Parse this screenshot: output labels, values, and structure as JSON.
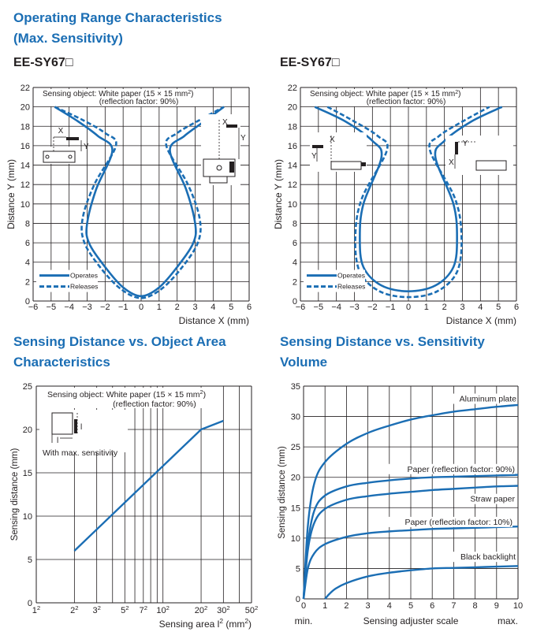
{
  "sections": {
    "operating_range": {
      "line1": "Operating Range Characteristics",
      "line2": "(Max. Sensitivity)"
    },
    "distance_area": {
      "line1": "Sensing Distance vs. Object Area",
      "line2": "Characteristics"
    },
    "distance_sensitivity": {
      "line1": "Sensing Distance vs. Sensitivity",
      "line2": "Volume"
    }
  },
  "models": {
    "left": "EE-SY67□",
    "right": "EE-SY67□"
  },
  "colors": {
    "curve": "#1b6eb4",
    "grid": "#231f20",
    "title": "#1b6eb4"
  },
  "chart_data": [
    {
      "id": "range-left",
      "type": "line",
      "xlabel": "Distance X (mm)",
      "ylabel": "Distance  Y (mm)",
      "xlim": [
        -6,
        6
      ],
      "ylim": [
        0,
        22
      ],
      "xticks": [
        "−6",
        "−5",
        "−4",
        "−3",
        "−2",
        "−1",
        "0",
        "1",
        "2",
        "3",
        "4",
        "5",
        "6"
      ],
      "yticks": [
        "0",
        "2",
        "4",
        "6",
        "8",
        "10",
        "12",
        "14",
        "16",
        "18",
        "20",
        "22"
      ],
      "annotation_line1": "Sensing object: White paper (15 × 15 mm²)",
      "annotation_line2": "(reflection factor: 90%)",
      "legend": [
        "Operates",
        "Releases"
      ],
      "legend_position": "bottom-left",
      "series": [
        {
          "name": "Operates",
          "style": "solid",
          "x": [
            -4.8,
            -3.5,
            -2.4,
            -1.6,
            -2.5,
            -3.0,
            -2.9,
            -2.0,
            -1.0,
            0,
            1.0,
            2.0,
            2.9,
            3.0,
            2.5,
            1.6,
            2.4,
            3.5,
            4.6
          ],
          "y": [
            20,
            18.5,
            17,
            15.5,
            11.5,
            8,
            6,
            3.5,
            1.4,
            0.5,
            1.4,
            3.5,
            6,
            8,
            11.5,
            15.5,
            17,
            18.5,
            20
          ]
        },
        {
          "name": "Releases",
          "style": "dashed",
          "x": [
            -4.8,
            -3.3,
            -2.0,
            -1.4,
            -2.6,
            -3.25,
            -3.15,
            -2.2,
            -1.1,
            0,
            1.1,
            2.2,
            3.15,
            3.25,
            2.6,
            1.4,
            2.0,
            3.3,
            4.6
          ],
          "y": [
            20,
            18.7,
            17.3,
            16,
            12,
            8.5,
            6,
            3.3,
            1.2,
            0.3,
            1.2,
            3.3,
            6,
            8.5,
            12,
            16,
            17.3,
            18.7,
            20
          ]
        }
      ]
    },
    {
      "id": "range-right",
      "type": "line",
      "xlabel": "Distance X (mm)",
      "ylabel": "Distance  Y (mm)",
      "xlim": [
        -6,
        6
      ],
      "ylim": [
        0,
        22
      ],
      "xticks": [
        "−6",
        "−5",
        "−4",
        "−3",
        "−2",
        "−1",
        "0",
        "1",
        "2",
        "3",
        "4",
        "5",
        "6"
      ],
      "yticks": [
        "0",
        "2",
        "4",
        "6",
        "8",
        "10",
        "12",
        "14",
        "16",
        "18",
        "20",
        "22"
      ],
      "annotation_line1": "Sensing object: White paper (15 × 15 mm²)",
      "annotation_line2": "(reflection factor: 90%)",
      "legend": [
        "Operates",
        "Releases"
      ],
      "legend_position": "bottom-left",
      "series": [
        {
          "name": "Operates",
          "style": "solid",
          "x": [
            -5.2,
            -3.5,
            -2.0,
            -1.5,
            -2.5,
            -2.7,
            -2.5,
            -1.5,
            0,
            1.5,
            2.5,
            2.7,
            2.5,
            1.5,
            2.0,
            3.5,
            5.2
          ],
          "y": [
            20,
            18.5,
            16.5,
            14.8,
            10,
            6.5,
            3.5,
            1.6,
            1.0,
            1.6,
            3.5,
            6.5,
            10,
            14.8,
            16.5,
            18.5,
            20
          ]
        },
        {
          "name": "Releases",
          "style": "dashed",
          "x": [
            -4.5,
            -3.2,
            -1.7,
            -1.2,
            -2.6,
            -2.95,
            -2.7,
            -1.6,
            0,
            1.6,
            2.7,
            2.95,
            2.6,
            1.2,
            1.7,
            3.2,
            4.5
          ],
          "y": [
            20,
            18.7,
            17,
            15.5,
            10.5,
            6.5,
            3.0,
            1.0,
            0.4,
            1.0,
            3.0,
            6.5,
            10.5,
            15.5,
            17,
            18.7,
            20
          ]
        }
      ]
    },
    {
      "id": "distance-area",
      "type": "line",
      "xscale": "log",
      "xlabel": "Sensing area  l² (mm²)",
      "ylabel": "Sensing distance (mm)",
      "xlim": [
        1,
        50
      ],
      "ylim": [
        0,
        25
      ],
      "xticks": [
        "1²",
        "2²",
        "3²",
        "5²",
        "7²",
        "10²",
        "20²",
        "30²",
        "50²"
      ],
      "yticks": [
        "0",
        "5",
        "10",
        "15",
        "20",
        "25"
      ],
      "annotation_line1": "Sensing object: White paper (15 × 15 mm²)",
      "annotation_line2": "(reflection factor: 90%)",
      "inset_label": "With max. sensitivity",
      "series": [
        {
          "x": [
            2,
            20,
            30
          ],
          "y": [
            6,
            20,
            21
          ]
        }
      ]
    },
    {
      "id": "distance-sensitivity",
      "type": "line",
      "xlabel": "Sensing adjuster scale",
      "ylabel": "Sensing distance (mm)",
      "xmin_label": "min.",
      "xmax_label": "max.",
      "xlim": [
        0,
        10
      ],
      "ylim": [
        0,
        35
      ],
      "xticks": [
        "0",
        "1",
        "2",
        "3",
        "4",
        "5",
        "6",
        "7",
        "8",
        "9",
        "10"
      ],
      "yticks": [
        "0",
        "5",
        "10",
        "15",
        "20",
        "25",
        "30",
        "35"
      ],
      "series": [
        {
          "name": "Aluminum plate",
          "x": [
            0,
            0.2,
            0.5,
            1,
            2,
            3,
            4,
            5,
            6,
            7,
            8,
            9,
            10
          ],
          "y": [
            0,
            12,
            19,
            22.5,
            25.5,
            27.3,
            28.5,
            29.5,
            30.2,
            30.8,
            31.2,
            31.6,
            31.9
          ]
        },
        {
          "name": "Paper (reflection factor: 90%)",
          "x": [
            0,
            0.2,
            0.5,
            1,
            2,
            3,
            4,
            5,
            6,
            7,
            8,
            9,
            10
          ],
          "y": [
            0,
            9,
            14.5,
            17,
            18.5,
            19.1,
            19.5,
            19.8,
            20,
            20.1,
            20.2,
            20.3,
            20.4
          ]
        },
        {
          "name": "Straw paper",
          "x": [
            0,
            0.2,
            0.5,
            1,
            2,
            3,
            4,
            5,
            6,
            7,
            8,
            9,
            10
          ],
          "y": [
            0,
            8,
            12.5,
            14.8,
            16.3,
            16.9,
            17.3,
            17.6,
            17.9,
            18.1,
            18.3,
            18.5,
            18.6
          ]
        },
        {
          "name": "Paper (reflection factor: 10%)",
          "x": [
            0,
            0.2,
            0.5,
            1,
            2,
            3,
            4,
            5,
            6,
            7,
            8,
            9,
            10
          ],
          "y": [
            0,
            5,
            7.5,
            9,
            10.2,
            10.8,
            11.1,
            11.3,
            11.5,
            11.6,
            11.7,
            11.8,
            11.9
          ]
        },
        {
          "name": "Black backlight",
          "x": [
            1,
            1.2,
            1.5,
            2,
            3,
            4,
            5,
            6,
            7,
            8,
            9,
            10
          ],
          "y": [
            0,
            0.8,
            1.7,
            2.6,
            3.7,
            4.3,
            4.7,
            5.0,
            5.1,
            5.2,
            5.3,
            5.4
          ]
        }
      ]
    }
  ]
}
